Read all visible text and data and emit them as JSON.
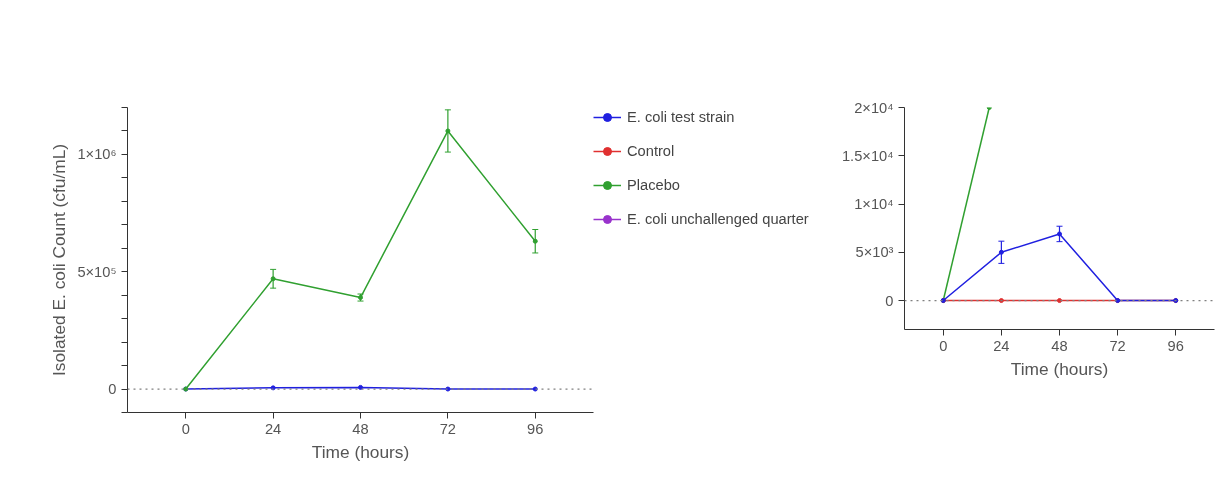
{
  "chart_data": [
    {
      "type": "line",
      "xlabel": "Time (hours)",
      "ylabel": "Isolated E. coli Count (cfu/mL)",
      "x": [
        0,
        24,
        48,
        72,
        96
      ],
      "xlim": [
        -16,
        112
      ],
      "xticks": [
        0,
        24,
        48,
        72,
        96
      ],
      "ylim": [
        -100000,
        1200000
      ],
      "yticks": [
        {
          "value": -100000,
          "label": null
        },
        {
          "value": 0,
          "label": "0"
        },
        {
          "value": 100000,
          "label": null
        },
        {
          "value": 200000,
          "label": null
        },
        {
          "value": 300000,
          "label": null
        },
        {
          "value": 400000,
          "label": null
        },
        {
          "value": 500000,
          "label": "5×10⁵"
        },
        {
          "value": 600000,
          "label": null
        },
        {
          "value": 700000,
          "label": null
        },
        {
          "value": 800000,
          "label": null
        },
        {
          "value": 900000,
          "label": null
        },
        {
          "value": 1000000,
          "label": "1×10⁶"
        },
        {
          "value": 1100000,
          "label": null
        },
        {
          "value": 1200000,
          "label": null
        }
      ],
      "grid": false,
      "legend": "right",
      "marker": "circle",
      "line_style": "solid",
      "ref_lines": [
        {
          "axis": "y",
          "value": 0,
          "label": null,
          "color": "#808080",
          "line_style": "dotted"
        }
      ],
      "series": [
        {
          "name": "E. coli test strain",
          "color": "#2020e0",
          "values": [
            0,
            5000,
            7000,
            0,
            0
          ]
        },
        {
          "name": "Control",
          "color": "#e03030",
          "values": [
            null,
            null,
            null,
            null,
            null
          ]
        },
        {
          "name": "Placebo",
          "color": "#30a030",
          "values": [
            0,
            470000,
            390000,
            1100000,
            630000
          ],
          "errors": [
            null,
            40000,
            15000,
            90000,
            50000
          ]
        },
        {
          "name": "E. coli unchallenged quarter",
          "color": "#9933cc",
          "values": [
            null,
            null,
            null,
            null,
            null
          ]
        }
      ]
    },
    {
      "type": "line",
      "xlabel": "Time (hours)",
      "x": [
        0,
        24,
        48,
        72,
        96
      ],
      "xlim": [
        -16,
        112
      ],
      "xticks": [
        0,
        24,
        48,
        72,
        96
      ],
      "ylim": [
        -3000,
        20000
      ],
      "yticks": [
        {
          "value": 0,
          "label": "0"
        },
        {
          "value": 5000,
          "label": "5×10³"
        },
        {
          "value": 10000,
          "label": "1×10⁴"
        },
        {
          "value": 15000,
          "label": "1.5×10⁴"
        },
        {
          "value": 20000,
          "label": "2×10⁴"
        }
      ],
      "grid": false,
      "marker": "circle",
      "line_style": "solid",
      "ref_lines": [
        {
          "axis": "y",
          "value": 0,
          "label": null,
          "color": "#808080",
          "line_style": "dotted"
        }
      ],
      "series": [
        {
          "color": "#30a030",
          "x": [
            0,
            19
          ],
          "values": [
            0,
            20000
          ]
        },
        {
          "color": "#e03030",
          "values": [
            0,
            0,
            0,
            0,
            0
          ]
        },
        {
          "color": "#2020e0",
          "values": [
            0,
            5000,
            6900,
            0,
            0
          ],
          "errors": [
            null,
            1150,
            800,
            null,
            null
          ]
        }
      ]
    }
  ]
}
